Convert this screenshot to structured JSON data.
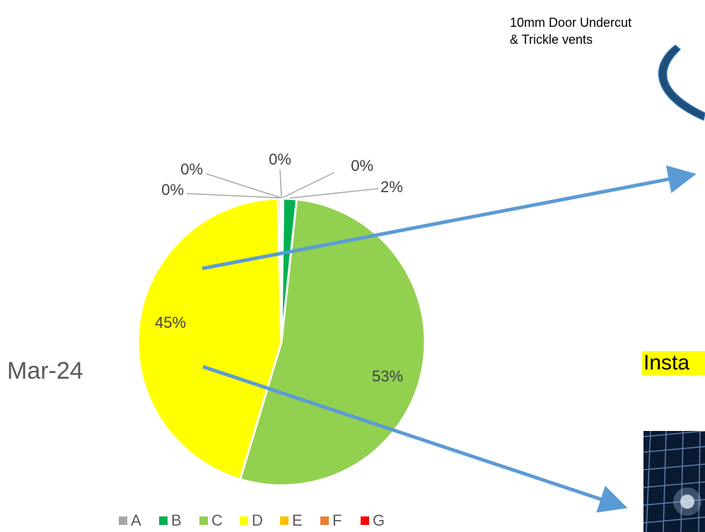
{
  "chart_data": {
    "type": "pie",
    "categories": [
      "A",
      "B",
      "C",
      "D",
      "E",
      "F",
      "G"
    ],
    "values": [
      0.2,
      1.5,
      53,
      45,
      0.3,
      0.1,
      0
    ],
    "labels": [
      "0%",
      "2%",
      "53%",
      "45%",
      "0%",
      "0%",
      "0%"
    ],
    "colors": [
      "#a6a6a6",
      "#00b050",
      "#92d050",
      "#ffff00",
      "#ffc000",
      "#ed7d31",
      "#ff0000"
    ],
    "legend_position": "bottom"
  },
  "annotations": {
    "date": "Mar-24",
    "note_line1": "10mm Door Undercut",
    "note_line2": "& Trickle vents",
    "install_label": "Insta"
  },
  "photo": {
    "icon": "solar-panel-photo"
  }
}
